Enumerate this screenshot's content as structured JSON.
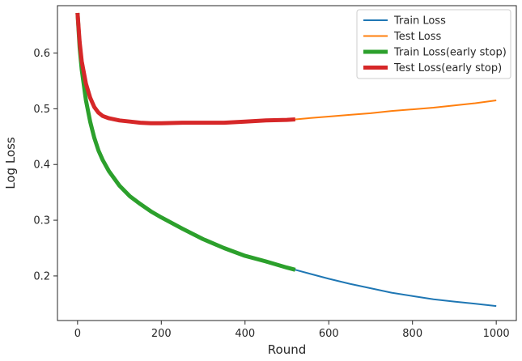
{
  "chart_data": {
    "type": "line",
    "xlabel": "Round",
    "ylabel": "Log Loss",
    "xlim": [
      -48,
      1048
    ],
    "ylim": [
      0.12,
      0.685
    ],
    "xticks": [
      0,
      200,
      400,
      600,
      800,
      1000
    ],
    "yticks": [
      0.2,
      0.3,
      0.4,
      0.5,
      0.6
    ],
    "ytick_labels": [
      "0.2",
      "0.3",
      "0.4",
      "0.5",
      "0.6"
    ],
    "grid": false,
    "legend_position": "top-right",
    "series": [
      {
        "name": "Train Loss",
        "color": "#1f77b4",
        "width": 2,
        "x": [
          0,
          5,
          10,
          20,
          30,
          40,
          50,
          60,
          75,
          100,
          125,
          150,
          175,
          200,
          250,
          300,
          350,
          400,
          450,
          500,
          520,
          550,
          600,
          650,
          700,
          750,
          800,
          850,
          900,
          950,
          1000
        ],
        "y": [
          0.672,
          0.61,
          0.57,
          0.515,
          0.477,
          0.448,
          0.425,
          0.408,
          0.388,
          0.362,
          0.343,
          0.329,
          0.316,
          0.305,
          0.285,
          0.266,
          0.25,
          0.236,
          0.226,
          0.215,
          0.211,
          0.205,
          0.195,
          0.186,
          0.178,
          0.17,
          0.164,
          0.158,
          0.154,
          0.15,
          0.146
        ]
      },
      {
        "name": "Test Loss",
        "color": "#ff7f0e",
        "width": 2,
        "x": [
          0,
          5,
          10,
          20,
          30,
          40,
          50,
          60,
          75,
          100,
          125,
          150,
          175,
          200,
          250,
          300,
          350,
          400,
          450,
          500,
          520,
          550,
          600,
          650,
          700,
          750,
          800,
          850,
          900,
          950,
          1000
        ],
        "y": [
          0.672,
          0.62,
          0.585,
          0.545,
          0.52,
          0.503,
          0.493,
          0.487,
          0.483,
          0.479,
          0.477,
          0.475,
          0.474,
          0.474,
          0.475,
          0.475,
          0.475,
          0.477,
          0.479,
          0.48,
          0.481,
          0.483,
          0.486,
          0.489,
          0.492,
          0.496,
          0.499,
          0.502,
          0.506,
          0.51,
          0.515
        ]
      },
      {
        "name": "Train Loss(early stop)",
        "color": "#2ca02c",
        "width": 5,
        "x": [
          0,
          5,
          10,
          20,
          30,
          40,
          50,
          60,
          75,
          100,
          125,
          150,
          175,
          200,
          250,
          300,
          350,
          400,
          450,
          500,
          520
        ],
        "y": [
          0.672,
          0.61,
          0.57,
          0.515,
          0.477,
          0.448,
          0.425,
          0.408,
          0.388,
          0.362,
          0.343,
          0.329,
          0.316,
          0.305,
          0.285,
          0.266,
          0.25,
          0.236,
          0.226,
          0.215,
          0.211
        ]
      },
      {
        "name": "Test Loss(early stop)",
        "color": "#d62728",
        "width": 5,
        "x": [
          0,
          5,
          10,
          20,
          30,
          40,
          50,
          60,
          75,
          100,
          125,
          150,
          175,
          200,
          250,
          300,
          350,
          400,
          450,
          500,
          520
        ],
        "y": [
          0.672,
          0.62,
          0.585,
          0.545,
          0.52,
          0.503,
          0.493,
          0.487,
          0.483,
          0.479,
          0.477,
          0.475,
          0.474,
          0.474,
          0.475,
          0.475,
          0.475,
          0.477,
          0.479,
          0.48,
          0.481
        ]
      }
    ]
  }
}
